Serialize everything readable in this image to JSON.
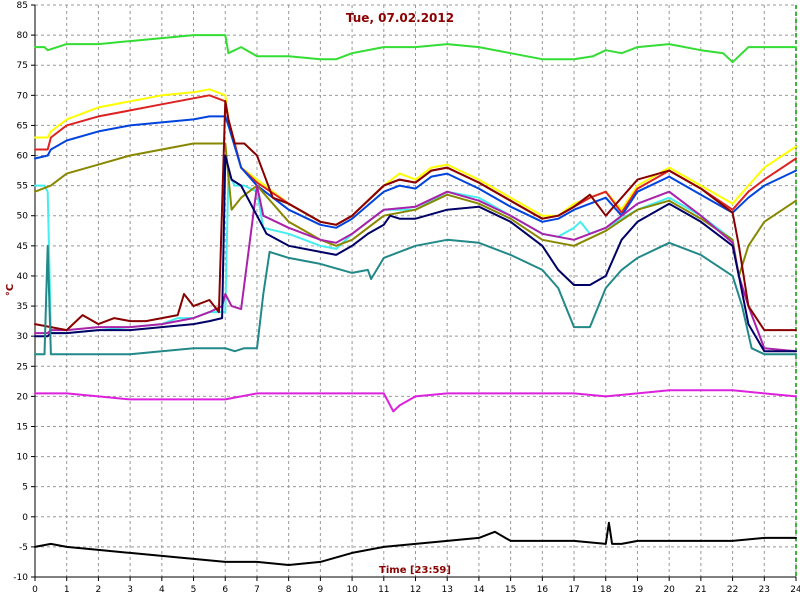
{
  "chart_data": {
    "type": "line",
    "title": "Tue, 07.02.2012",
    "xlabel": "Time [23:59]",
    "ylabel": "°C",
    "xlim": [
      0,
      24
    ],
    "ylim": [
      -10,
      85
    ],
    "xticks": [
      0,
      1,
      2,
      3,
      4,
      5,
      6,
      7,
      8,
      9,
      10,
      11,
      12,
      13,
      14,
      15,
      16,
      17,
      18,
      19,
      20,
      21,
      22,
      23,
      24
    ],
    "yticks": [
      -10,
      -5,
      0,
      5,
      10,
      15,
      20,
      25,
      30,
      35,
      40,
      45,
      50,
      55,
      60,
      65,
      70,
      75,
      80,
      85
    ],
    "grid": true,
    "series": [
      {
        "color": "#33dd33",
        "x": [
          0,
          0.3,
          0.4,
          1,
          2,
          3,
          4,
          5,
          5.5,
          6,
          6.1,
          6.5,
          7,
          8,
          9,
          9.5,
          10,
          11,
          12,
          13,
          14,
          15,
          16,
          17,
          17.6,
          18,
          18.5,
          19,
          20,
          21,
          21.7,
          22,
          22.5,
          23,
          24
        ],
        "y": [
          78,
          78,
          77.5,
          78.5,
          78.5,
          79,
          79.5,
          80,
          80,
          80,
          77,
          78,
          76.5,
          76.5,
          76,
          76,
          77,
          78,
          78,
          78.5,
          78,
          77,
          76,
          76,
          76.5,
          77.5,
          77,
          78,
          78.5,
          77.5,
          77,
          75.5,
          78,
          78,
          78
        ]
      },
      {
        "color": "#ffff00",
        "x": [
          0,
          0.4,
          0.5,
          1,
          2,
          3,
          4,
          5,
          5.5,
          6,
          6.1,
          6.5,
          7,
          8,
          9,
          9.5,
          10,
          11,
          11.5,
          12,
          12.5,
          13,
          14,
          15,
          16,
          16.5,
          17,
          17.5,
          18,
          18.5,
          19,
          20,
          21,
          22,
          22.5,
          23,
          24
        ],
        "y": [
          63,
          63,
          64,
          66,
          68,
          69,
          70,
          70.5,
          71,
          70,
          66,
          58,
          56,
          52,
          49,
          48.5,
          50,
          55,
          57,
          56,
          58,
          58.5,
          56,
          53,
          50,
          50,
          52,
          53,
          54,
          51,
          55,
          58,
          55,
          52,
          55,
          58,
          61.5
        ]
      },
      {
        "color": "#dd2222",
        "x": [
          0,
          0.4,
          0.5,
          1,
          2,
          3,
          4,
          5,
          5.5,
          6,
          6.1,
          6.5,
          7,
          8,
          9,
          9.5,
          10,
          11,
          11.5,
          12,
          12.5,
          13,
          14,
          15,
          16,
          16.5,
          17,
          17.5,
          18,
          18.5,
          19,
          20,
          21,
          22,
          22.5,
          23,
          24
        ],
        "y": [
          61,
          61,
          63,
          65,
          66.5,
          67.5,
          68.5,
          69.5,
          70,
          69,
          66,
          58,
          55.5,
          52,
          49,
          48.5,
          50,
          55,
          56,
          55.5,
          57.5,
          58,
          55.5,
          52.5,
          49.5,
          50,
          51.5,
          53,
          54,
          50.5,
          54.5,
          57.5,
          54.5,
          51,
          54,
          56,
          59.5
        ]
      },
      {
        "color": "#0044dd",
        "x": [
          0,
          0.4,
          0.5,
          1,
          2,
          3,
          4,
          5,
          5.5,
          6,
          6.1,
          6.5,
          7,
          8,
          9,
          9.5,
          10,
          11,
          11.5,
          12,
          12.5,
          13,
          14,
          15,
          16,
          16.5,
          17,
          17.5,
          18,
          18.5,
          19,
          20,
          21,
          22,
          22.5,
          23,
          24
        ],
        "y": [
          59.5,
          60,
          61,
          62.5,
          64,
          65,
          65.5,
          66,
          66.5,
          66.5,
          65,
          58,
          55,
          51,
          48.5,
          48,
          49.5,
          54,
          55,
          54.5,
          56.5,
          57,
          54.5,
          51.5,
          49,
          49.5,
          51,
          52,
          53,
          50,
          54,
          56.5,
          53.5,
          50.5,
          53,
          55,
          57.5
        ]
      },
      {
        "color": "#44eeee",
        "x": [
          0,
          0.3,
          0.4,
          0.5,
          1,
          2,
          3,
          4,
          4.5,
          5,
          5.5,
          6,
          6.1,
          6.3,
          6.6,
          7,
          7.2,
          8,
          9,
          9.5,
          10,
          11,
          12,
          13,
          14,
          15,
          16,
          16.5,
          17,
          17.2,
          17.5,
          18,
          19,
          20,
          21,
          22
        ],
        "y": [
          55,
          55,
          54,
          30.5,
          30.5,
          31,
          31.5,
          32,
          33,
          33,
          34,
          34,
          57,
          55,
          55,
          54,
          48,
          47,
          45,
          44.5,
          47,
          51,
          51,
          54,
          53,
          50,
          47,
          46.5,
          48,
          49,
          47,
          48,
          51,
          53,
          50,
          46
        ]
      },
      {
        "color": "#888800",
        "x": [
          0,
          0.5,
          1,
          2,
          3,
          4,
          5,
          5.5,
          6,
          6.2,
          6.5,
          7,
          8,
          9,
          9.5,
          10,
          11,
          12,
          13,
          14,
          15,
          16,
          17,
          18,
          19,
          20,
          21,
          22,
          22.2,
          22.5,
          23,
          24
        ],
        "y": [
          54,
          55,
          57,
          58.5,
          60,
          61,
          62,
          62,
          62,
          51,
          53,
          55,
          49,
          46,
          45,
          46,
          50,
          51,
          53.5,
          52,
          49.5,
          46,
          45,
          47.5,
          51,
          52.5,
          49.5,
          46,
          40,
          45,
          49,
          52.5
        ]
      },
      {
        "color": "#aa22aa",
        "x": [
          0,
          0.4,
          0.5,
          1,
          2,
          3,
          4,
          5,
          5.5,
          5.9,
          6,
          6.2,
          6.5,
          7,
          7.2,
          8,
          9,
          9.5,
          10,
          11,
          12,
          13,
          14,
          15,
          16,
          17,
          18,
          19,
          20,
          21,
          22,
          22.2,
          22.5,
          23,
          24
        ],
        "y": [
          30.5,
          30.5,
          31,
          31,
          31.5,
          31.5,
          32,
          33,
          34,
          35,
          37,
          35,
          34.5,
          55,
          50,
          48,
          46,
          45.5,
          47,
          51,
          51.5,
          54,
          52.5,
          50,
          47,
          46,
          48,
          52,
          54,
          50,
          45.5,
          40,
          35,
          28,
          27.5
        ]
      },
      {
        "color": "#880000",
        "x": [
          0,
          0.5,
          1,
          1.5,
          2,
          2.5,
          3,
          3.5,
          4,
          4.5,
          4.7,
          5,
          5.5,
          5.8,
          6,
          6.1,
          6.3,
          6.6,
          7,
          7.5,
          8,
          9,
          9.5,
          10,
          11,
          11.5,
          12,
          12.5,
          13,
          14,
          15,
          16,
          16.5,
          17,
          17.5,
          18,
          18.5,
          19,
          20,
          21,
          22,
          22.2,
          22.5,
          23,
          24
        ],
        "y": [
          32,
          31.5,
          31,
          33.5,
          32,
          33,
          32.5,
          32.5,
          33,
          33.5,
          37,
          35,
          36,
          34,
          69,
          66,
          62,
          62,
          60,
          53,
          52,
          49,
          48.5,
          50,
          55,
          56,
          55.5,
          57.5,
          58,
          55.5,
          52.5,
          49.5,
          50,
          51.5,
          53.5,
          50,
          53,
          56,
          57.5,
          54.5,
          50.5,
          45,
          35,
          31,
          31
        ]
      },
      {
        "color": "#000066",
        "x": [
          0,
          0.4,
          0.5,
          1,
          2,
          3,
          4,
          5,
          5.5,
          5.9,
          6,
          6.2,
          6.5,
          7,
          7.3,
          8,
          9,
          9.5,
          10,
          10.5,
          11,
          11.2,
          11.5,
          12,
          13,
          14,
          15,
          16,
          16.5,
          17,
          17.5,
          18,
          18.5,
          19,
          20,
          21,
          22,
          22.2,
          22.5,
          23,
          24
        ],
        "y": [
          30,
          30,
          30.5,
          30.5,
          31,
          31,
          31.5,
          32,
          32.5,
          33,
          60,
          56,
          55,
          50,
          47,
          45,
          44,
          43.5,
          45,
          47,
          48.5,
          50,
          49.5,
          49.5,
          51,
          51.5,
          49,
          45,
          41,
          38.5,
          38.5,
          40,
          46,
          49,
          52,
          49,
          45,
          40,
          32,
          27.5,
          27.5
        ]
      },
      {
        "color": "#228888",
        "x": [
          0,
          0.3,
          0.4,
          0.5,
          1,
          2,
          3,
          4,
          5,
          6,
          6.3,
          6.6,
          7,
          7.2,
          7.4,
          8,
          9,
          10,
          10.5,
          10.6,
          11,
          12,
          13,
          14,
          15,
          16,
          16.5,
          17,
          17.5,
          18,
          18.5,
          19,
          20,
          21,
          22,
          22.3,
          22.6,
          23,
          24
        ],
        "y": [
          27,
          27,
          45,
          27,
          27,
          27,
          27,
          27.5,
          28,
          28,
          27.5,
          28,
          28,
          37,
          44,
          43,
          42,
          40.5,
          41,
          39.5,
          43,
          45,
          46,
          45.5,
          43.5,
          41,
          38,
          31.5,
          31.5,
          38,
          41,
          43,
          45.5,
          43.5,
          40,
          35,
          28,
          27,
          27
        ]
      },
      {
        "color": "#dd22dd",
        "x": [
          0,
          1,
          2,
          3,
          4,
          5,
          6,
          7,
          8,
          9,
          10,
          11,
          11.3,
          11.5,
          12,
          13,
          14,
          15,
          16,
          17,
          18,
          19,
          20,
          21,
          22,
          23,
          24
        ],
        "y": [
          20.5,
          20.5,
          20,
          19.5,
          19.5,
          19.5,
          19.5,
          20.5,
          20.5,
          20.5,
          20.5,
          20.5,
          17.5,
          18.5,
          20,
          20.5,
          20.5,
          20.5,
          20.5,
          20.5,
          20,
          20.5,
          21,
          21,
          21,
          20.5,
          20
        ]
      },
      {
        "color": "#000000",
        "x": [
          0,
          0.5,
          1,
          2,
          3,
          4,
          5,
          6,
          7,
          8,
          9,
          10,
          11,
          12,
          13,
          14,
          14.5,
          15,
          16,
          17,
          18,
          18.1,
          18.2,
          18.5,
          19,
          20,
          21,
          22,
          23,
          24
        ],
        "y": [
          -5,
          -4.5,
          -5,
          -5.5,
          -6,
          -6.5,
          -7,
          -7.5,
          -7.5,
          -8,
          -7.5,
          -6,
          -5,
          -4.5,
          -4,
          -3.5,
          -2.5,
          -4,
          -4,
          -4,
          -4.5,
          -1,
          -4.5,
          -4.5,
          -4,
          -4,
          -4,
          -4,
          -3.5,
          -3.5
        ]
      }
    ]
  }
}
